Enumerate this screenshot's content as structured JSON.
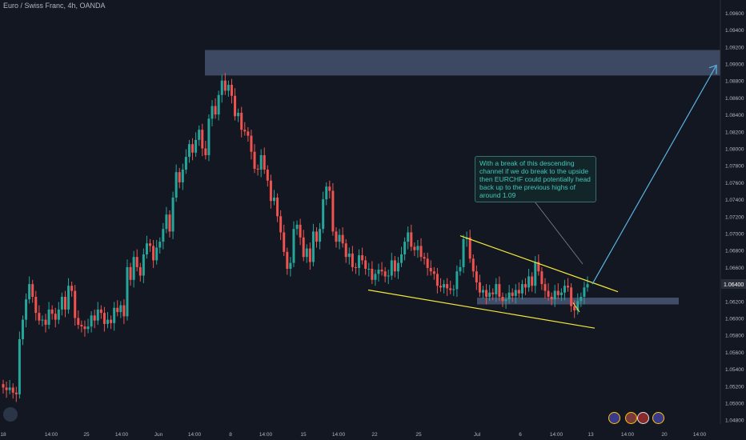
{
  "title": "Euro / Swiss Franc, 4h, OANDA",
  "colors": {
    "background": "#131722",
    "up": "#26a69a",
    "down": "#ef5350",
    "zone": "#4c5a7a",
    "channel": "#f5e83a",
    "arrow": "#5ab4e0",
    "axis_text": "#b2b5be",
    "price_tag": "#2a2e39"
  },
  "annotation": {
    "text": "With a break of this descending channel if we do break to the upside then EURCHF could potentially head back up to the previous highs of around 1.09"
  },
  "current_price_label": "1.06400",
  "event_icons": [
    "flag-icon-eu",
    "flag-icon-ch",
    "flag-icon-ch",
    "flag-icon-eu"
  ],
  "chart_data": {
    "type": "candlestick",
    "title": "Euro / Swiss Franc, 4h, OANDA",
    "ylim": [
      1.0475,
      1.0975
    ],
    "yticks": [
      "1.04800",
      "1.05000",
      "1.05200",
      "1.05400",
      "1.05600",
      "1.05800",
      "1.06000",
      "1.06200",
      "1.06400",
      "1.06600",
      "1.06800",
      "1.07000",
      "1.07200",
      "1.07400",
      "1.07600",
      "1.07800",
      "1.08000",
      "1.08200",
      "1.08400",
      "1.08600",
      "1.08800",
      "1.09000",
      "1.09200",
      "1.09400",
      "1.09600"
    ],
    "xticks": [
      "18",
      "14:00",
      "25",
      "14:00",
      "Jun",
      "14:00",
      "8",
      "14:00",
      "15",
      "14:00",
      "22",
      "25",
      "Jul",
      "6",
      "14:00",
      "13",
      "14:00",
      "20",
      "14:00"
    ],
    "close": [
      1.0518,
      1.0515,
      1.0518,
      1.0512,
      1.051,
      1.0575,
      1.0598,
      1.0622,
      1.064,
      1.0625,
      1.0606,
      1.0597,
      1.0598,
      1.0592,
      1.061,
      1.0605,
      1.0598,
      1.061,
      1.0625,
      1.061,
      1.0638,
      1.0632,
      1.06,
      1.0592,
      1.059,
      1.0587,
      1.059,
      1.0603,
      1.0597,
      1.061,
      1.0606,
      1.0593,
      1.0598,
      1.0594,
      1.0612,
      1.0607,
      1.0615,
      1.0602,
      1.066,
      1.0645,
      1.0672,
      1.066,
      1.065,
      1.0675,
      1.0688,
      1.0685,
      1.0668,
      1.0683,
      1.069,
      1.0705,
      1.0722,
      1.0702,
      1.0742,
      1.0772,
      1.076,
      1.0775,
      1.079,
      1.0805,
      1.0795,
      1.081,
      1.0822,
      1.08,
      1.0792,
      1.0835,
      1.085,
      1.084,
      1.0863,
      1.088,
      1.0868,
      1.0875,
      1.0862,
      1.0838,
      1.0842,
      1.0822,
      1.082,
      1.0815,
      1.0796,
      1.0776,
      1.0775,
      1.0792,
      1.0775,
      1.0762,
      1.0738,
      1.0742,
      1.072,
      1.0701,
      1.0678,
      1.0658,
      1.0665,
      1.0705,
      1.071,
      1.0695,
      1.0672,
      1.0682,
      1.0666,
      1.0702,
      1.069,
      1.0705,
      1.074,
      1.0755,
      1.075,
      1.0702,
      1.069,
      1.0698,
      1.0688,
      1.0672,
      1.0676,
      1.066,
      1.0659,
      1.0674,
      1.0668,
      1.0658,
      1.0658,
      1.0645,
      1.0652,
      1.0657,
      1.0655,
      1.0649,
      1.065,
      1.0668,
      1.0655,
      1.0665,
      1.0675,
      1.069,
      1.0701,
      1.0684,
      1.068,
      1.0685,
      1.0672,
      1.067,
      1.0659,
      1.0655,
      1.0652,
      1.0638,
      1.0636,
      1.064,
      1.0635,
      1.0633,
      1.0634,
      1.0655,
      1.066,
      1.0693,
      1.0695,
      1.067,
      1.0655,
      1.0642,
      1.063,
      1.0633,
      1.0625,
      1.063,
      1.0628,
      1.064,
      1.0625,
      1.062,
      1.0622,
      1.063,
      1.0626,
      1.0633,
      1.0629,
      1.064,
      1.0636,
      1.0649,
      1.0638,
      1.0666,
      1.0655,
      1.064,
      1.0632,
      1.0625,
      1.0622,
      1.0632,
      1.0627,
      1.063,
      1.0638,
      1.0636,
      1.0614,
      1.0609,
      1.062,
      1.0625,
      1.0636,
      1.064
    ],
    "annotations": {
      "resistance_zone": [
        1.0886,
        1.0916
      ],
      "support_zone": [
        1.0616,
        1.0624
      ],
      "channel_upper": [
        [
          1.0697,
          1.0631
        ]
      ],
      "channel_lower": [
        [
          1.0633,
          1.0588
        ]
      ],
      "arrow_target": 1.0898
    }
  }
}
